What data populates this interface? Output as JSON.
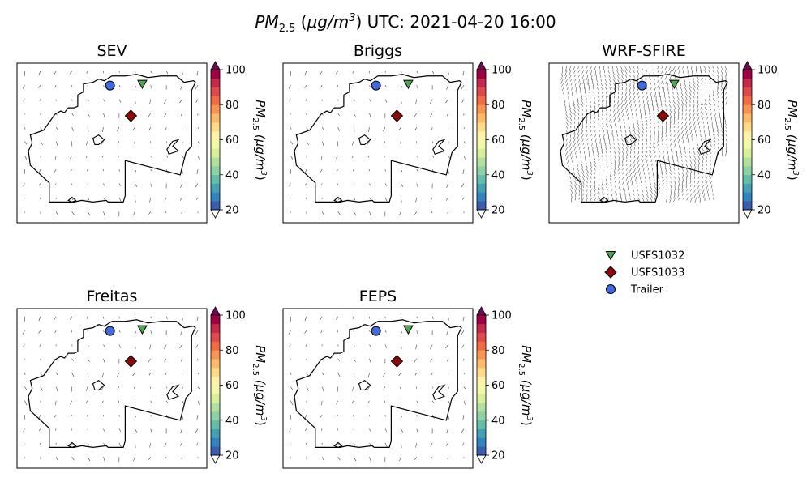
{
  "figure": {
    "title_var": "PM",
    "title_sub": "2.5",
    "title_open": " (",
    "title_unit": "μg/m",
    "title_exp": "3",
    "title_rest": ") UTC: 2021-04-20 16:00"
  },
  "chart_data": {
    "type": "map",
    "time_utc": "2021-04-20 16:00",
    "variable": "PM2.5",
    "panels": [
      {
        "title": "SEV",
        "wind_density": "sparse"
      },
      {
        "title": "Briggs",
        "wind_density": "sparse"
      },
      {
        "title": "WRF-SFIRE",
        "wind_density": "dense"
      },
      {
        "title": "Freitas",
        "wind_density": "sparse"
      },
      {
        "title": "FEPS",
        "wind_density": "sparse"
      }
    ],
    "colorbar": {
      "label_var": "PM",
      "label_sub": "2.5",
      "label_unit": " (μg/m",
      "label_exp": "3",
      "label_close": ")",
      "ticks": [
        "20",
        "40",
        "60",
        "80",
        "100"
      ],
      "min": 20,
      "max": 100,
      "extend": "both",
      "colormap": "Spectral_r",
      "under_color": "#ffffff",
      "over_color": "#6e0a57"
    },
    "stations": [
      {
        "name": "USFS1032",
        "marker": "triangle-down",
        "color": "#4fa84f"
      },
      {
        "name": "USFS1033",
        "marker": "diamond",
        "color": "#8b0a0a"
      },
      {
        "name": "Trailer",
        "marker": "circle",
        "color": "#4169e1"
      }
    ],
    "legend_position": "right, below WRF-SFIRE panel"
  }
}
